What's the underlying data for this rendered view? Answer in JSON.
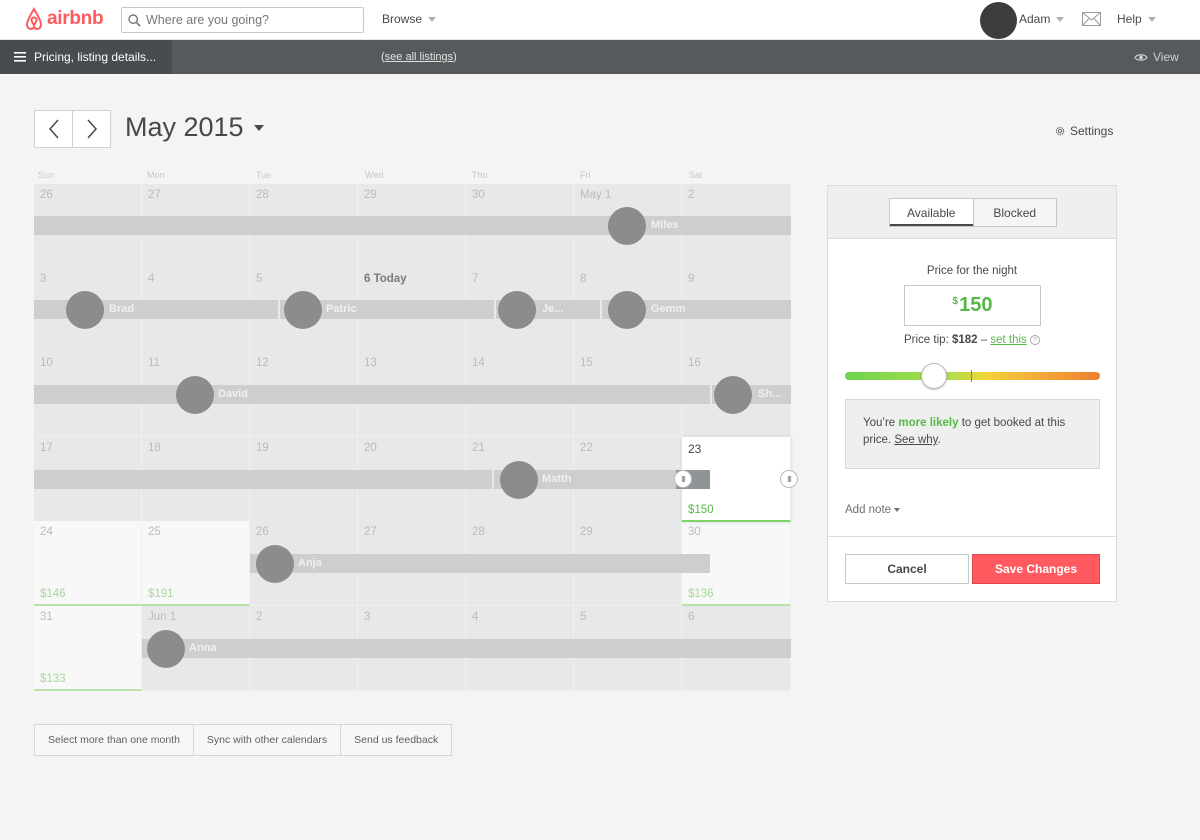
{
  "brand": {
    "name": "airbnb",
    "color": "#ff5a5f"
  },
  "nav": {
    "search_placeholder": "Where are you going?",
    "browse": "Browse",
    "user": "Adam",
    "help": "Help"
  },
  "subnav": {
    "menu_label": "Pricing, listing details...",
    "see_all": "see all listings",
    "view": "View"
  },
  "calendar": {
    "month": "May 2015",
    "settings": "Settings",
    "dow": [
      "Sun",
      "Mon",
      "Tue",
      "Wed",
      "Thu",
      "Fri",
      "Sat"
    ],
    "weeks": [
      [
        "26",
        "27",
        "28",
        "29",
        "30",
        "May 1",
        "2"
      ],
      [
        "3",
        "4",
        "5",
        "6 Today",
        "7",
        "8",
        "9"
      ],
      [
        "10",
        "11",
        "12",
        "13",
        "14",
        "15",
        "16"
      ],
      [
        "17",
        "18",
        "19",
        "20",
        "21",
        "22",
        "23"
      ],
      [
        "24",
        "25",
        "26",
        "27",
        "28",
        "29",
        "30"
      ],
      [
        "31",
        "Jun 1",
        "2",
        "3",
        "4",
        "5",
        "6"
      ]
    ],
    "prices": {
      "may23": "$150",
      "may24": "$146",
      "may25": "$191",
      "may30": "$136",
      "may31": "$133"
    },
    "guests": [
      "Miles",
      "Brad",
      "Patric",
      "Je...",
      "Gemm",
      "David",
      "Sh...",
      "Matth",
      "Anja",
      "Anna"
    ],
    "handle_glyph": "III"
  },
  "bottom_buttons": [
    "Select more than one month",
    "Sync with other calendars",
    "Send us feedback"
  ],
  "panel": {
    "available": "Available",
    "blocked": "Blocked",
    "price_label": "Price for the night",
    "currency": "$",
    "price": "150",
    "tip_prefix": "Price tip:",
    "tip_value": "$182",
    "tip_dash": "–",
    "tip_link": "set this",
    "tip_help": "?",
    "slider_position": 0.33,
    "likely_pre": "You’re",
    "likely_bold": "more likely",
    "likely_post": "to get booked at this price.",
    "see_why": "See why",
    "period": ".",
    "add_note": "Add note",
    "cancel": "Cancel",
    "save": "Save Changes"
  }
}
